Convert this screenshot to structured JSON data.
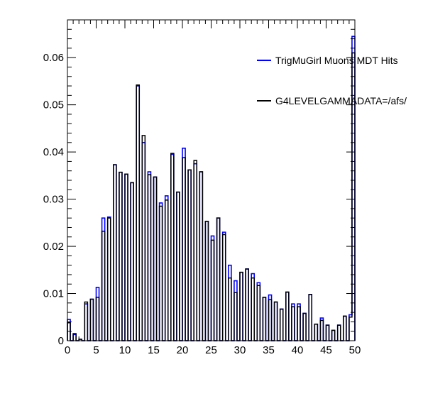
{
  "chart_data": {
    "type": "bar",
    "title": "",
    "xlabel": "",
    "ylabel": "",
    "xlim": [
      0,
      50
    ],
    "ylim": [
      0,
      0.068
    ],
    "bin_width": 0.5,
    "x_ticks": [
      0,
      5,
      10,
      15,
      20,
      25,
      30,
      35,
      40,
      45,
      50
    ],
    "y_ticks": [
      0,
      0.01,
      0.02,
      0.03,
      0.04,
      0.05,
      0.06
    ],
    "x_tick_labels": [
      "0",
      "5",
      "10",
      "15",
      "20",
      "25",
      "30",
      "35",
      "40",
      "45",
      "50"
    ],
    "y_tick_labels": [
      "0",
      "0.01",
      "0.02",
      "0.03",
      "0.04",
      "0.05",
      "0.06"
    ],
    "legend_position": "top-right",
    "grid": false,
    "series": [
      {
        "name": "TrigMuGirl Muons MDT Hits",
        "color": "#0000ff",
        "values": [
          0.0045,
          0,
          0.0013,
          0,
          0.0003,
          0,
          0.0078,
          0,
          0.0088,
          0,
          0.0113,
          0,
          0.026,
          0,
          0.0262,
          0,
          0.0373,
          0,
          0.0357,
          0,
          0.0353,
          0,
          0.0335,
          0,
          0.054,
          0,
          0.042,
          0,
          0.0358,
          0,
          0.0347,
          0,
          0.0292,
          0,
          0.0307,
          0,
          0.0395,
          0,
          0.0315,
          0,
          0.0408,
          0,
          0.0362,
          0,
          0.0375,
          0,
          0.0358,
          0,
          0.0253,
          0,
          0.0222,
          0,
          0.026,
          0,
          0.023,
          0,
          0.016,
          0,
          0.0127,
          0,
          0.0145,
          0,
          0.0152,
          0,
          0.0142,
          0,
          0.0123,
          0,
          0.0092,
          0,
          0.0097,
          0,
          0.0082,
          0,
          0.0067,
          0,
          0.0103,
          0,
          0.0078,
          0,
          0.0078,
          0,
          0.0058,
          0,
          0.0098,
          0,
          0.0035,
          0,
          0.0048,
          0,
          0.0033,
          0,
          0.0022,
          0,
          0.0033,
          0,
          0.0052,
          0,
          0.0055,
          0.0645
        ]
      },
      {
        "name": "G4LEVELGAMMADATA=/afs/",
        "color": "#000000",
        "values": [
          0.0038,
          0,
          0.0015,
          0,
          0.0003,
          0,
          0.0082,
          0,
          0.0088,
          0,
          0.0092,
          0,
          0.0232,
          0,
          0.026,
          0,
          0.0373,
          0,
          0.0357,
          0,
          0.0353,
          0,
          0.0335,
          0,
          0.0542,
          0,
          0.0435,
          0,
          0.0352,
          0,
          0.0347,
          0,
          0.0285,
          0,
          0.0298,
          0,
          0.0397,
          0,
          0.0315,
          0,
          0.0388,
          0,
          0.0362,
          0,
          0.0382,
          0,
          0.0358,
          0,
          0.0253,
          0,
          0.0213,
          0,
          0.026,
          0,
          0.0225,
          0,
          0.0133,
          0,
          0.0102,
          0,
          0.0145,
          0,
          0.0152,
          0,
          0.0133,
          0,
          0.0117,
          0,
          0.0092,
          0,
          0.0087,
          0,
          0.0082,
          0,
          0.0067,
          0,
          0.0103,
          0,
          0.0072,
          0,
          0.0072,
          0,
          0.0058,
          0,
          0.0098,
          0,
          0.0035,
          0,
          0.0043,
          0,
          0.0033,
          0,
          0.0022,
          0,
          0.0033,
          0,
          0.0052,
          0,
          0.005,
          0.061
        ]
      }
    ]
  }
}
